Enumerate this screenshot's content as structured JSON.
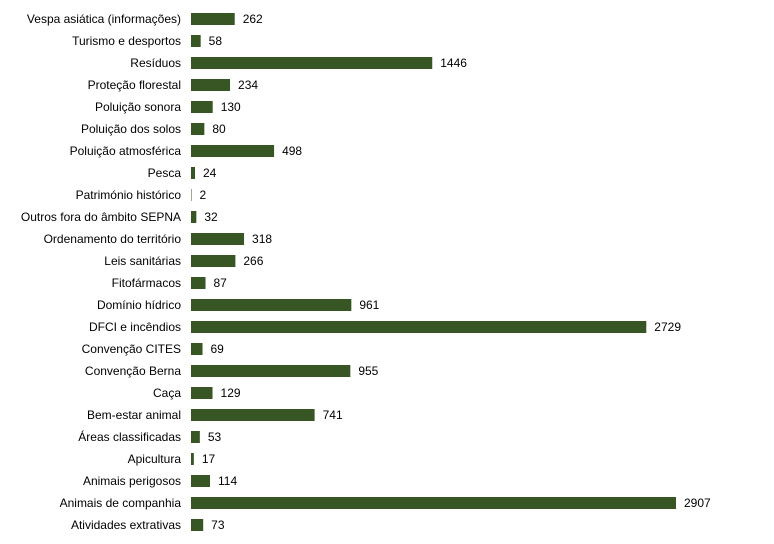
{
  "chart_data": {
    "type": "bar",
    "orientation": "horizontal",
    "categories": [
      "Vespa asiática (informações)",
      "Turismo e desportos",
      "Resíduos",
      "Proteção florestal",
      "Poluição sonora",
      "Poluição dos solos",
      "Poluição atmosférica",
      "Pesca",
      "Património histórico",
      "Outros fora do âmbito SEPNA",
      "Ordenamento do território",
      "Leis sanitárias",
      "Fitofármacos",
      "Domínio hídrico",
      "DFCI e incêndios",
      "Convenção CITES",
      "Convenção Berna",
      "Caça",
      "Bem-estar animal",
      "Áreas classificadas",
      "Apicultura",
      "Animais perigosos",
      "Animais de companhia",
      "Atividades extrativas"
    ],
    "values": [
      262,
      58,
      1446,
      234,
      130,
      80,
      498,
      24,
      2,
      32,
      318,
      266,
      87,
      961,
      2729,
      69,
      955,
      129,
      741,
      53,
      17,
      114,
      2907,
      73
    ],
    "value_labels": [
      "262",
      "58",
      "1446",
      "234",
      "130",
      "80",
      "498",
      "24",
      "2",
      "32",
      "318",
      "266",
      "87",
      "961",
      "2729",
      "69",
      "955",
      "129",
      "741",
      "53",
      "17",
      "114",
      "2907",
      "73"
    ],
    "title": "",
    "xlabel": "",
    "ylabel": "",
    "xlim": [
      0,
      3000
    ],
    "grid": false,
    "legend": "none",
    "bar_color": "#375623"
  }
}
